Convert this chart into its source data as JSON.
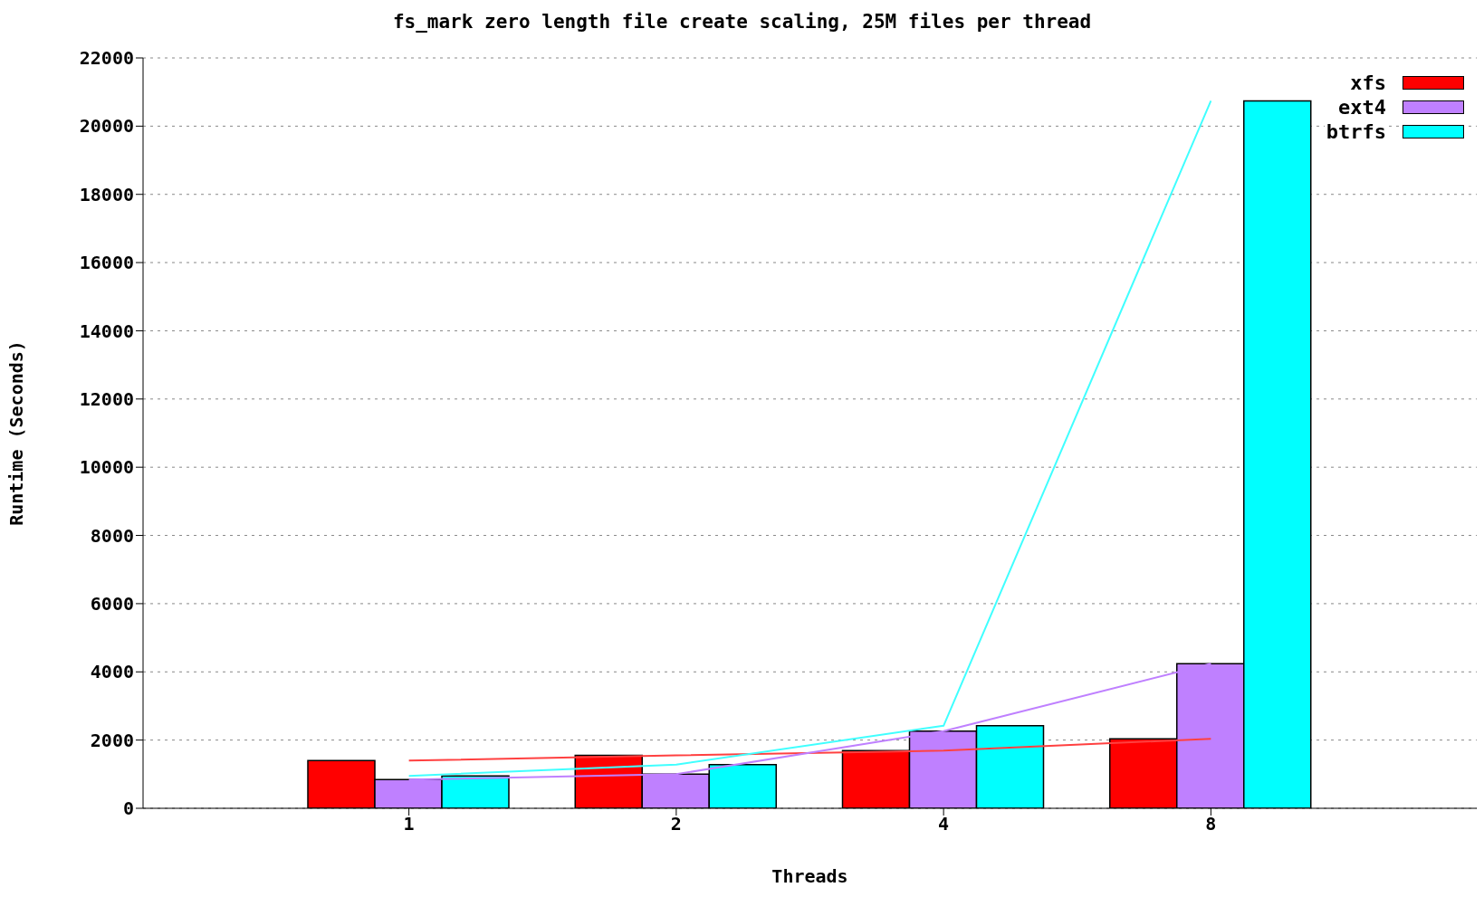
{
  "chart_data": {
    "type": "bar",
    "title": "fs_mark zero length file create scaling, 25M files per thread",
    "xlabel": "Threads",
    "ylabel": "Runtime (Seconds)",
    "categories": [
      "1",
      "2",
      "4",
      "8"
    ],
    "ylim": [
      0,
      22000
    ],
    "yticks": [
      0,
      2000,
      4000,
      6000,
      8000,
      10000,
      12000,
      14000,
      16000,
      18000,
      20000,
      22000
    ],
    "grid": "y",
    "legend": "top right",
    "series": [
      {
        "name": "xfs",
        "color": "#ff0000",
        "values": [
          1400,
          1550,
          1690,
          2040
        ]
      },
      {
        "name": "ext4",
        "color": "#bf80ff",
        "values": [
          840,
          1000,
          2260,
          4240
        ]
      },
      {
        "name": "btrfs",
        "color": "#00ffff",
        "values": [
          950,
          1280,
          2420,
          20740
        ]
      },
      {
        "type": "line",
        "color": "#ff4040",
        "values": [
          1400,
          1550,
          1690,
          2040
        ]
      },
      {
        "type": "line",
        "color": "#bf80ff",
        "values": [
          840,
          1000,
          2260,
          4240
        ]
      },
      {
        "type": "line",
        "color": "#40ffff",
        "values": [
          950,
          1280,
          2420,
          20740
        ]
      }
    ]
  }
}
